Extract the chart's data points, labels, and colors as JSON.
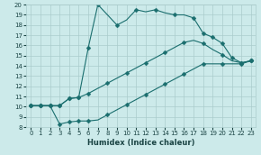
{
  "xlabel": "Humidex (Indice chaleur)",
  "bg_color": "#cceaea",
  "grid_color": "#aacccc",
  "line_color": "#1a6e6e",
  "xlim": [
    -0.5,
    23.5
  ],
  "ylim": [
    8,
    20
  ],
  "xticks": [
    0,
    1,
    2,
    3,
    4,
    5,
    6,
    7,
    8,
    9,
    10,
    11,
    12,
    13,
    14,
    15,
    16,
    17,
    18,
    19,
    20,
    21,
    22,
    23
  ],
  "yticks": [
    8,
    9,
    10,
    11,
    12,
    13,
    14,
    15,
    16,
    17,
    18,
    19,
    20
  ],
  "line1_x": [
    0,
    1,
    2,
    3,
    4,
    5,
    6,
    7,
    8,
    9,
    10,
    11,
    12,
    13,
    14,
    15,
    16,
    17,
    18,
    19,
    20,
    21,
    22,
    23
  ],
  "line1_y": [
    10.1,
    10.1,
    10.1,
    8.3,
    8.5,
    8.6,
    8.6,
    8.7,
    9.2,
    9.7,
    10.2,
    10.7,
    11.2,
    11.7,
    12.2,
    12.7,
    13.2,
    13.7,
    14.2,
    14.2,
    14.2,
    14.2,
    14.2,
    14.5
  ],
  "line2_x": [
    0,
    1,
    2,
    3,
    4,
    5,
    6,
    7,
    8,
    9,
    10,
    11,
    12,
    13,
    14,
    15,
    16,
    17,
    18,
    19,
    20,
    21,
    22,
    23
  ],
  "line2_y": [
    10.1,
    10.1,
    10.1,
    10.1,
    10.8,
    10.9,
    11.3,
    11.8,
    12.3,
    12.8,
    13.3,
    13.8,
    14.3,
    14.8,
    15.3,
    15.8,
    16.3,
    16.5,
    16.2,
    15.6,
    15.1,
    14.5,
    14.3,
    14.5
  ],
  "line3_x": [
    0,
    1,
    2,
    3,
    4,
    5,
    6,
    7,
    8,
    9,
    10,
    11,
    12,
    13,
    14,
    15,
    16,
    17,
    18,
    19,
    20,
    21,
    22,
    23
  ],
  "line3_y": [
    10.1,
    10.1,
    10.1,
    10.1,
    10.8,
    10.9,
    15.8,
    20.0,
    19.0,
    18.0,
    18.5,
    19.5,
    19.3,
    19.5,
    19.2,
    19.0,
    19.0,
    18.7,
    17.2,
    16.8,
    16.2,
    14.8,
    14.3,
    14.5
  ],
  "mark1": [
    0,
    1,
    2,
    3,
    4,
    5,
    6,
    8,
    10,
    12,
    14,
    16,
    18,
    20,
    22,
    23
  ],
  "mark2": [
    0,
    1,
    2,
    3,
    4,
    5,
    6,
    8,
    10,
    12,
    14,
    16,
    18,
    20,
    22,
    23
  ],
  "mark3": [
    0,
    1,
    2,
    3,
    4,
    5,
    6,
    7,
    9,
    11,
    13,
    15,
    17,
    18,
    19,
    20,
    21,
    22,
    23
  ]
}
